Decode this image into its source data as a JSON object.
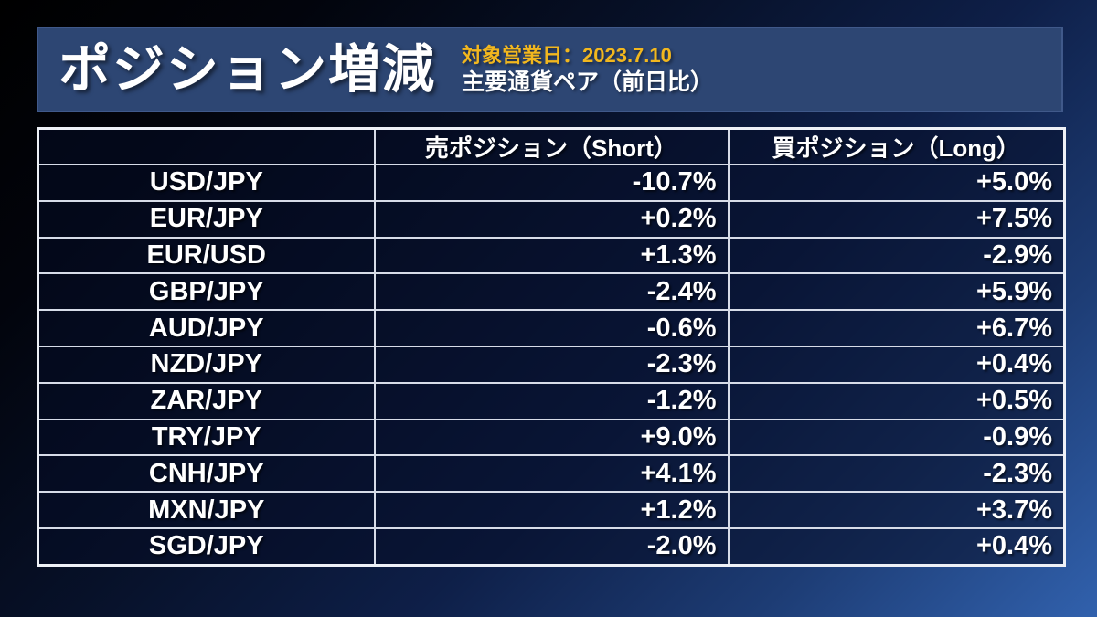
{
  "banner": {
    "title": "ポジション増減",
    "date_label": "対象営業日：2023.7.10",
    "subtitle": "主要通貨ペア（前日比）"
  },
  "chart_data": {
    "type": "table",
    "title": "ポジション増減",
    "subtitle": "主要通貨ペア（前日比）",
    "date_label": "対象営業日：2023.7.10",
    "columns": [
      "",
      "売ポジション（Short）",
      "買ポジション（Long）"
    ],
    "rows": [
      {
        "pair": "USD/JPY",
        "short": "-10.7%",
        "long": "+5.0%"
      },
      {
        "pair": "EUR/JPY",
        "short": "+0.2%",
        "long": "+7.5%"
      },
      {
        "pair": "EUR/USD",
        "short": "+1.3%",
        "long": "-2.9%"
      },
      {
        "pair": "GBP/JPY",
        "short": "-2.4%",
        "long": "+5.9%"
      },
      {
        "pair": "AUD/JPY",
        "short": "-0.6%",
        "long": "+6.7%"
      },
      {
        "pair": "NZD/JPY",
        "short": "-2.3%",
        "long": "+0.4%"
      },
      {
        "pair": "ZAR/JPY",
        "short": "-1.2%",
        "long": "+0.5%"
      },
      {
        "pair": "TRY/JPY",
        "short": "+9.0%",
        "long": "-0.9%"
      },
      {
        "pair": "CNH/JPY",
        "short": "+4.1%",
        "long": "-2.3%"
      },
      {
        "pair": "MXN/JPY",
        "short": "+1.2%",
        "long": "+3.7%"
      },
      {
        "pair": "SGD/JPY",
        "short": "-2.0%",
        "long": "+0.4%"
      }
    ]
  },
  "colors": {
    "accent_yellow": "#f2b71e",
    "banner_blue": "#2d4673",
    "cell_navy": "#060d26",
    "background_blue": "#3161ad",
    "table_border": "#d7dce8",
    "text_white": "#ffffff"
  }
}
